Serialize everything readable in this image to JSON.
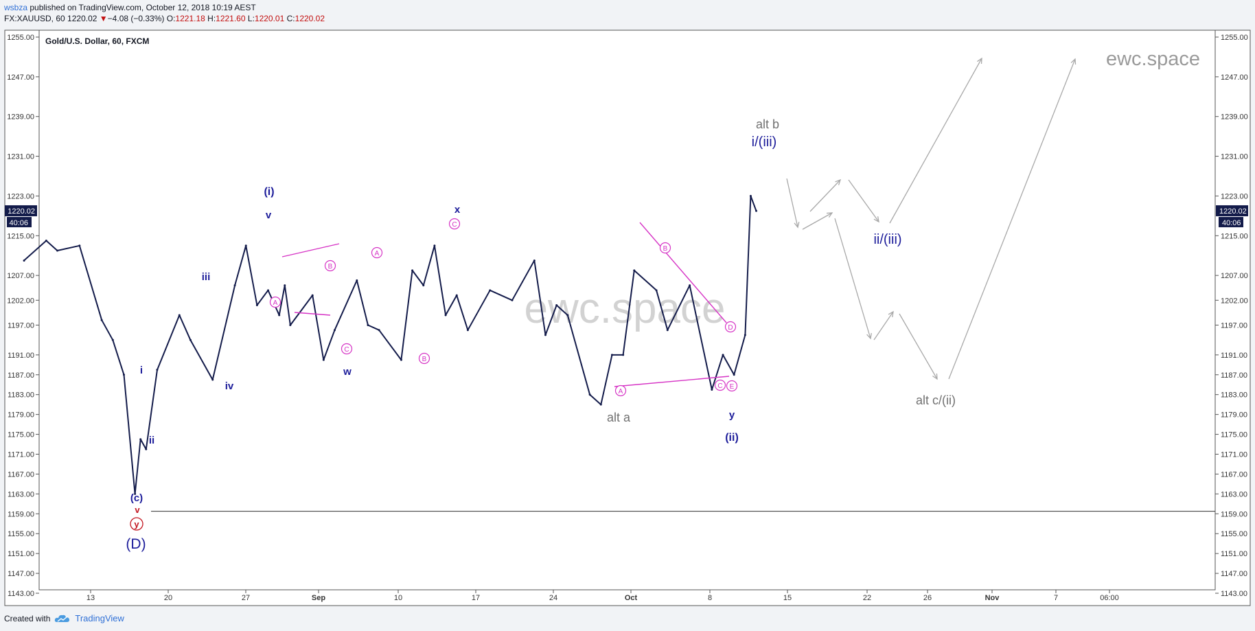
{
  "header": {
    "user": "wsbza",
    "published": "published on TradingView.com, October 12, 2018 10:19 AEST",
    "symbol": "FX:XAUUSD, 60",
    "last": "1220.02",
    "change_arrow": "▼",
    "change": "−4.08 (−0.33%)",
    "o_label": "O:",
    "o": "1221.18",
    "h_label": "H:",
    "h": "1221.60",
    "l_label": "L:",
    "l": "1220.01",
    "c_label": "C:",
    "c": "1220.02"
  },
  "footer": {
    "created_with": "Created with",
    "brand": "TradingView",
    "logo_icon": "tradingview-cloud-icon"
  },
  "colors": {
    "price_line": "#131b4a",
    "wave_blue": "#1c1c9a",
    "wave_pink": "#d633c5",
    "wave_red": "#c2151f",
    "projection_gray": "#a8a8a8",
    "alt_gray": "#707070",
    "axis_badge": "#131b4a"
  },
  "chart_data": {
    "type": "line",
    "title": "Gold/U.S. Dollar, 60, FXCM",
    "xlabel": "",
    "ylabel": "",
    "ylim": [
      1141.0,
      1257.0
    ],
    "grid": false,
    "y_ticks": [
      "1255.00",
      "1247.00",
      "1239.00",
      "1231.00",
      "1223.00",
      "1215.00",
      "1207.00",
      "1202.00",
      "1197.00",
      "1191.00",
      "1187.00",
      "1183.00",
      "1179.00",
      "1175.00",
      "1171.00",
      "1167.00",
      "1163.00",
      "1159.00",
      "1155.00",
      "1151.00",
      "1147.00",
      "1143.00"
    ],
    "x_ticks": [
      "13",
      "20",
      "27",
      "Sep",
      "10",
      "17",
      "24",
      "Oct",
      "8",
      "15",
      "22",
      "26",
      "Nov",
      "7",
      "06:00"
    ],
    "current_price": "1220.02",
    "countdown": "40:06",
    "horizontal_line": 1159.5,
    "watermark": "ewc.space",
    "watermark_corner": "ewc.space",
    "series": [
      {
        "name": "",
        "x": [
          "Aug 7",
          "Aug 9",
          "Aug 10",
          "Aug 12",
          "Aug 14",
          "Aug 15",
          "Aug 16",
          "Aug 17",
          "Aug 17",
          "Aug 18",
          "Aug 19",
          "Aug 21",
          "Aug 22",
          "Aug 24",
          "Aug 26",
          "Aug 27",
          "Aug 28",
          "Aug 29",
          "Aug 30",
          "Aug 30",
          "Aug 31",
          "Sep 2",
          "Sep 3",
          "Sep 4",
          "Sep 6",
          "Sep 7",
          "Sep 8",
          "Sep 10",
          "Sep 11",
          "Sep 12",
          "Sep 13",
          "Sep 14",
          "Sep 15",
          "Sep 16",
          "Sep 18",
          "Sep 20",
          "Sep 22",
          "Sep 23",
          "Sep 24",
          "Sep 25",
          "Sep 27",
          "Sep 28",
          "Sep 29",
          "Sep 30",
          "Oct 1",
          "Oct 3",
          "Oct 4",
          "Oct 6",
          "Oct 8",
          "Oct 9",
          "Oct 10",
          "Oct 11",
          "Oct 11",
          "Oct 12"
        ],
        "values": [
          1210,
          1214,
          1212,
          1213,
          1198,
          1194,
          1187,
          1163,
          1174,
          1172,
          1188,
          1199,
          1194,
          1186,
          1205,
          1213,
          1201,
          1204,
          1199,
          1205,
          1197,
          1203,
          1190,
          1196,
          1206,
          1197,
          1196,
          1190,
          1208,
          1205,
          1213,
          1199,
          1203,
          1196,
          1204,
          1202,
          1210,
          1195,
          1201,
          1199,
          1183,
          1181,
          1191,
          1191,
          1208,
          1204,
          1196,
          1205,
          1184,
          1191,
          1187,
          1195,
          1223,
          1220
        ]
      }
    ],
    "wave_labels": {
      "blue": [
        "(i)",
        "v",
        "iii",
        "i",
        "ii",
        "iv",
        "x",
        "w",
        "y",
        "(ii)",
        "(c)",
        "(D)",
        "i/(iii)",
        "ii/(iii)"
      ],
      "pink": [
        "A",
        "B",
        "C",
        "A",
        "C",
        "B",
        "A",
        "B",
        "D",
        "C",
        "E"
      ],
      "red": [
        "v",
        "y"
      ],
      "gray": [
        "alt a",
        "alt b",
        "alt c/(ii)"
      ]
    }
  }
}
